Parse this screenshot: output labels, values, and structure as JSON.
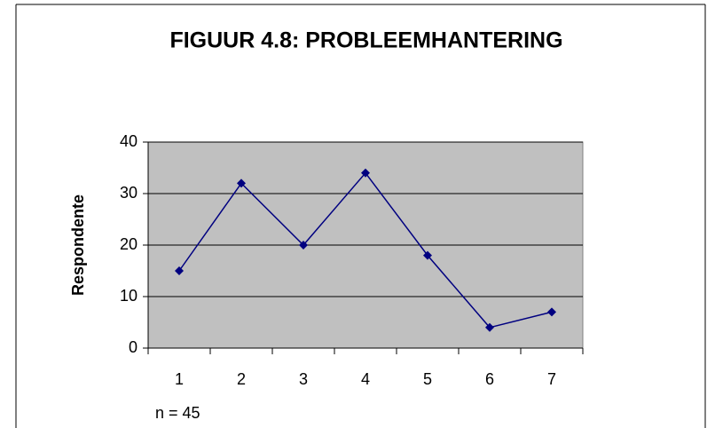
{
  "chart_data": {
    "type": "line",
    "title": "FIGUUR 4.8: PROBLEEMHANTERING",
    "y_label": "Respondente",
    "annotation": "n = 45",
    "categories": [
      "1",
      "2",
      "3",
      "4",
      "5",
      "6",
      "7"
    ],
    "values": [
      15,
      32,
      20,
      34,
      18,
      4,
      7
    ],
    "color": "#000080",
    "plot_background": "#c0c0c0",
    "ylim": [
      0,
      40
    ],
    "yticks": [
      0,
      10,
      20,
      30,
      40
    ],
    "grid": true
  }
}
